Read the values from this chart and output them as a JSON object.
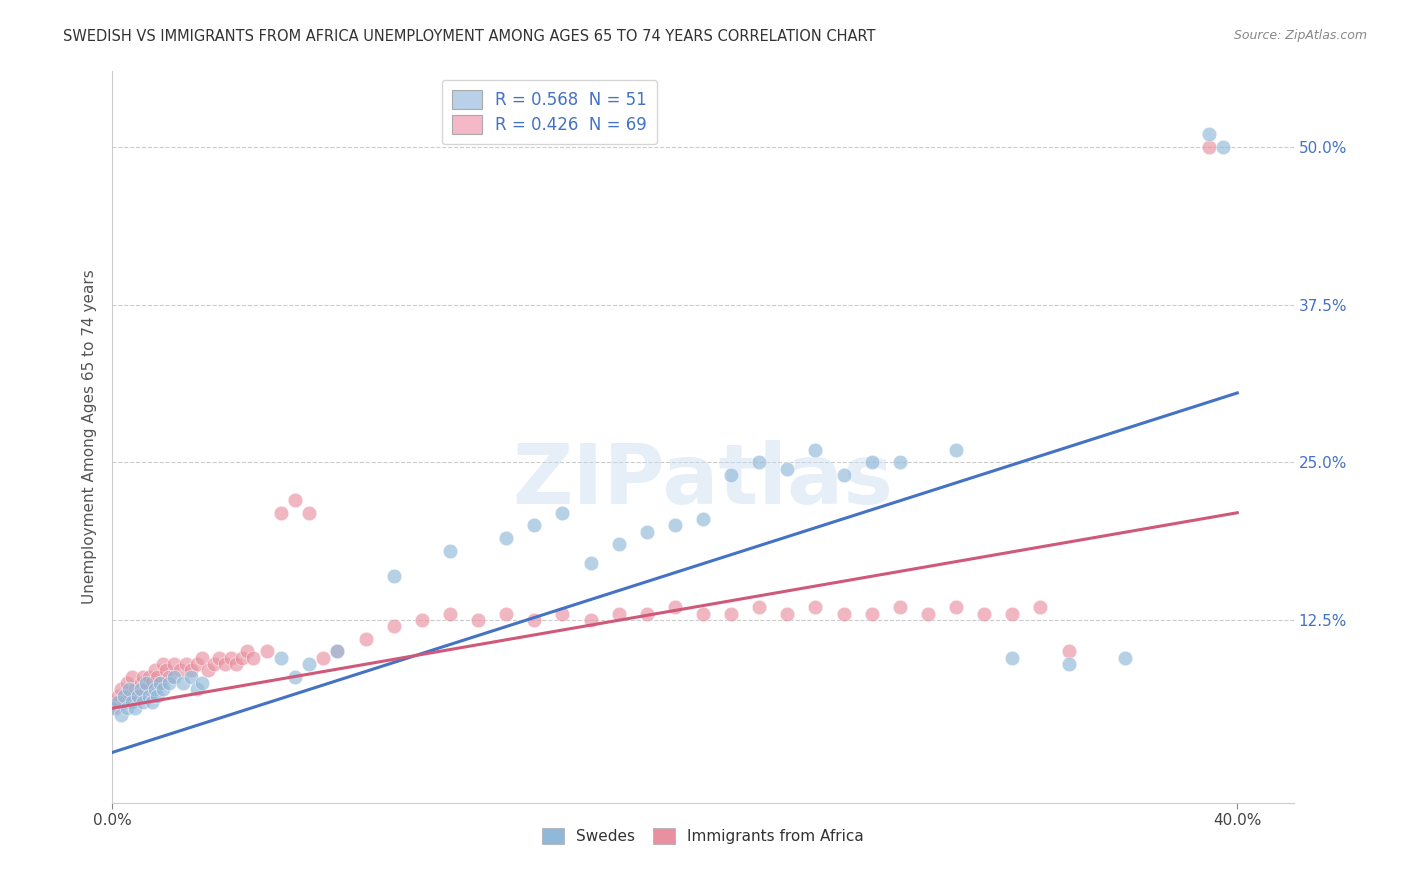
{
  "title": "SWEDISH VS IMMIGRANTS FROM AFRICA UNEMPLOYMENT AMONG AGES 65 TO 74 YEARS CORRELATION CHART",
  "source": "Source: ZipAtlas.com",
  "ylabel": "Unemployment Among Ages 65 to 74 years",
  "ytick_labels": [
    "12.5%",
    "25.0%",
    "37.5%",
    "50.0%"
  ],
  "ytick_values": [
    0.125,
    0.25,
    0.375,
    0.5
  ],
  "xlim": [
    0.0,
    0.42
  ],
  "ylim": [
    -0.02,
    0.56
  ],
  "legend_entries": [
    {
      "label": "R = 0.568  N = 51",
      "color": "#b8d0e8"
    },
    {
      "label": "R = 0.426  N = 69",
      "color": "#f4b8c8"
    }
  ],
  "legend_bottom": [
    "Swedes",
    "Immigrants from Africa"
  ],
  "blue_color": "#90b8d8",
  "pink_color": "#e890a0",
  "blue_line_color": "#4472c4",
  "pink_line_color": "#d05878",
  "watermark": "ZIPatlas",
  "swedes_x": [
    0.0,
    0.002,
    0.003,
    0.004,
    0.005,
    0.006,
    0.007,
    0.008,
    0.009,
    0.01,
    0.011,
    0.012,
    0.013,
    0.014,
    0.015,
    0.016,
    0.017,
    0.018,
    0.02,
    0.022,
    0.025,
    0.028,
    0.03,
    0.032,
    0.06,
    0.065,
    0.07,
    0.08,
    0.1,
    0.12,
    0.14,
    0.15,
    0.16,
    0.17,
    0.18,
    0.19,
    0.2,
    0.21,
    0.22,
    0.23,
    0.24,
    0.25,
    0.26,
    0.27,
    0.28,
    0.3,
    0.32,
    0.34,
    0.36,
    0.39,
    0.395
  ],
  "swedes_y": [
    0.055,
    0.06,
    0.05,
    0.065,
    0.055,
    0.07,
    0.06,
    0.055,
    0.065,
    0.07,
    0.06,
    0.075,
    0.065,
    0.06,
    0.07,
    0.065,
    0.075,
    0.07,
    0.075,
    0.08,
    0.075,
    0.08,
    0.07,
    0.075,
    0.095,
    0.08,
    0.09,
    0.1,
    0.16,
    0.18,
    0.19,
    0.2,
    0.21,
    0.17,
    0.185,
    0.195,
    0.2,
    0.205,
    0.24,
    0.25,
    0.245,
    0.26,
    0.24,
    0.25,
    0.25,
    0.26,
    0.095,
    0.09,
    0.095,
    0.51,
    0.5
  ],
  "africa_x": [
    0.0,
    0.001,
    0.002,
    0.003,
    0.004,
    0.005,
    0.006,
    0.007,
    0.008,
    0.009,
    0.01,
    0.011,
    0.012,
    0.013,
    0.014,
    0.015,
    0.016,
    0.017,
    0.018,
    0.019,
    0.02,
    0.022,
    0.024,
    0.026,
    0.028,
    0.03,
    0.032,
    0.034,
    0.036,
    0.038,
    0.04,
    0.042,
    0.044,
    0.046,
    0.048,
    0.05,
    0.055,
    0.06,
    0.065,
    0.07,
    0.075,
    0.08,
    0.09,
    0.1,
    0.11,
    0.12,
    0.13,
    0.14,
    0.15,
    0.16,
    0.17,
    0.18,
    0.19,
    0.2,
    0.21,
    0.22,
    0.23,
    0.24,
    0.25,
    0.26,
    0.27,
    0.28,
    0.29,
    0.3,
    0.31,
    0.32,
    0.33,
    0.34,
    0.39
  ],
  "africa_y": [
    0.06,
    0.055,
    0.065,
    0.07,
    0.06,
    0.075,
    0.065,
    0.08,
    0.07,
    0.065,
    0.075,
    0.08,
    0.07,
    0.08,
    0.075,
    0.085,
    0.08,
    0.075,
    0.09,
    0.085,
    0.08,
    0.09,
    0.085,
    0.09,
    0.085,
    0.09,
    0.095,
    0.085,
    0.09,
    0.095,
    0.09,
    0.095,
    0.09,
    0.095,
    0.1,
    0.095,
    0.1,
    0.21,
    0.22,
    0.21,
    0.095,
    0.1,
    0.11,
    0.12,
    0.125,
    0.13,
    0.125,
    0.13,
    0.125,
    0.13,
    0.125,
    0.13,
    0.13,
    0.135,
    0.13,
    0.13,
    0.135,
    0.13,
    0.135,
    0.13,
    0.13,
    0.135,
    0.13,
    0.135,
    0.13,
    0.13,
    0.135,
    0.1,
    0.5
  ],
  "blue_line_x": [
    0.0,
    0.4
  ],
  "blue_line_y": [
    0.02,
    0.305
  ],
  "pink_line_x": [
    0.0,
    0.4
  ],
  "pink_line_y": [
    0.055,
    0.21
  ]
}
